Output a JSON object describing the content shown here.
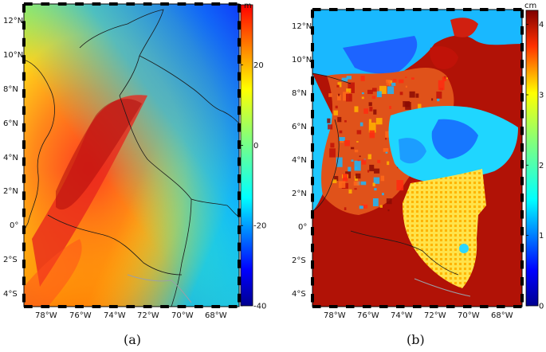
{
  "figure": {
    "panels": [
      {
        "id": "a",
        "caption": "(a)",
        "colorbar": {
          "unit": "m",
          "ticks": [
            20,
            0,
            -20,
            -40
          ],
          "range": [
            -40,
            35
          ]
        },
        "lat_ticks": [
          "12°N",
          "10°N",
          "8°N",
          "6°N",
          "4°N",
          "2°N",
          "0°",
          "2°S",
          "4°S"
        ],
        "lon_ticks": [
          "78°W",
          "76°W",
          "74°W",
          "72°W",
          "70°W",
          "68°W"
        ]
      },
      {
        "id": "b",
        "caption": "(b)",
        "colorbar": {
          "unit": "cm",
          "ticks": [
            4,
            3,
            2,
            1,
            0
          ],
          "range": [
            0,
            4.2
          ]
        },
        "lat_ticks": [
          "12°N",
          "10°N",
          "8°N",
          "6°N",
          "4°N",
          "2°N",
          "0°",
          "2°S",
          "4°S"
        ],
        "lon_ticks": [
          "78°W",
          "76°W",
          "74°W",
          "72°W",
          "70°W",
          "68°W"
        ]
      }
    ],
    "colors": {
      "jet_dark_blue": "#00008f",
      "jet_blue": "#0040ff",
      "jet_cyan": "#00e5ff",
      "jet_green": "#7fff7f",
      "jet_yellow": "#ffe500",
      "jet_orange": "#ff7f00",
      "jet_red": "#e31a1c",
      "jet_dark_red": "#a00000"
    }
  }
}
